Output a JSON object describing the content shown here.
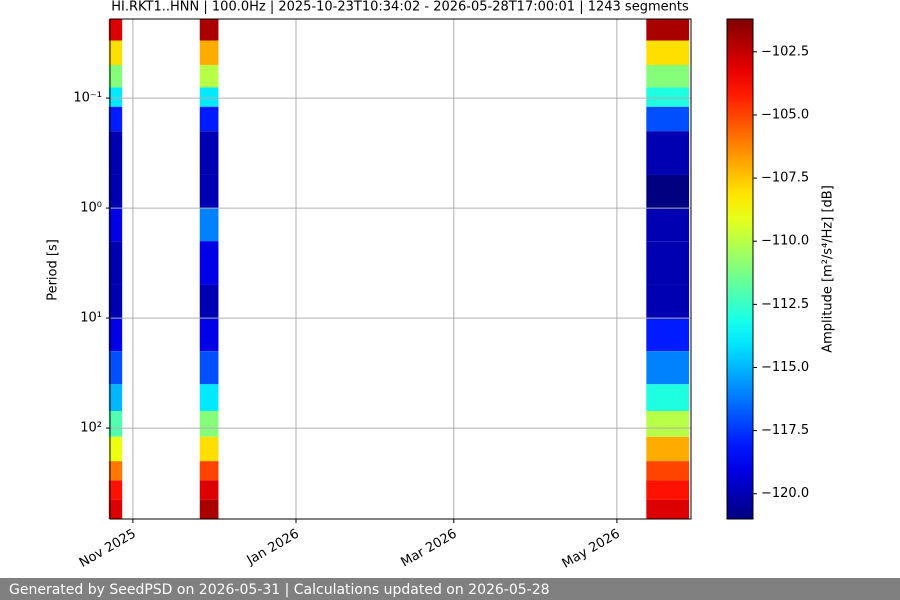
{
  "chart_data": {
    "type": "spectrogram",
    "title": "HI.RKT1..HNN | 100.0Hz | 2025-10-23T10:34:02 - 2026-05-28T17:00:01 | 1243 segments",
    "y_label": "Period [s]",
    "colorbar_label": "Amplitude [m²/s⁴/Hz] [dB]",
    "xlim": [
      "2025-10-23T10:34:02",
      "2026-05-28T17:00:01"
    ],
    "xticks": [
      {
        "value": "2025-11-01",
        "label": "Nov 2025"
      },
      {
        "value": "2026-01-01",
        "label": "Jan 2026"
      },
      {
        "value": "2026-03-01",
        "label": "Mar 2026"
      },
      {
        "value": "2026-05-01",
        "label": "May 2026"
      }
    ],
    "ylim": [
      0.0191,
      671
    ],
    "y_log": true,
    "y_inverted": true,
    "yticks": [
      {
        "value": 0.1,
        "label": "10⁻¹"
      },
      {
        "value": 1,
        "label": "10⁰"
      },
      {
        "value": 10,
        "label": "10¹"
      },
      {
        "value": 100,
        "label": "10²"
      }
    ],
    "grid": true,
    "colormap": "jet",
    "clim": [
      -121.0,
      -101.2
    ],
    "cticks": [
      {
        "value": -102.5,
        "label": "−102.5"
      },
      {
        "value": -105.0,
        "label": "−105.0"
      },
      {
        "value": -107.5,
        "label": "−107.5"
      },
      {
        "value": -110.0,
        "label": "−110.0"
      },
      {
        "value": -112.5,
        "label": "−112.5"
      },
      {
        "value": -115.0,
        "label": "−115.0"
      },
      {
        "value": -117.5,
        "label": "−117.5"
      },
      {
        "value": -120.0,
        "label": "−120.0"
      }
    ],
    "period_bins": [
      0.0191,
      0.03,
      0.05,
      0.08,
      0.12,
      0.2,
      0.5,
      1,
      2,
      5,
      10,
      20,
      40,
      70,
      120,
      200,
      300,
      450,
      671
    ],
    "blocks": [
      {
        "start": "2025-10-23",
        "end": "2025-10-28",
        "values": [
          -103,
          -108,
          -111,
          -114,
          -118,
          -120,
          -120,
          -119,
          -120,
          -120,
          -119,
          -117,
          -115,
          -112,
          -109,
          -106,
          -104,
          -103
        ]
      },
      {
        "start": "2025-11-26",
        "end": "2025-12-03",
        "values": [
          -102,
          -107,
          -110,
          -114,
          -118,
          -120,
          -120,
          -116,
          -119,
          -120,
          -119,
          -117,
          -114,
          -111,
          -108,
          -105,
          -103,
          -102
        ]
      },
      {
        "start": "2026-05-12",
        "end": "2026-05-28",
        "values": [
          -102,
          -108,
          -111,
          -113,
          -117,
          -120,
          -121,
          -120,
          -120,
          -120,
          -118,
          -116,
          -113,
          -110,
          -107,
          -105,
          -104,
          -103
        ]
      }
    ]
  },
  "footer": {
    "text": "Generated by SeedPSD on 2026-05-31 | Calculations updated on 2026-05-28"
  }
}
